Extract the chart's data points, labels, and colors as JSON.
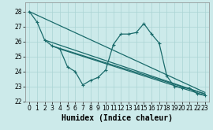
{
  "xlabel": "Humidex (Indice chaleur)",
  "background_color": "#cceaea",
  "grid_color": "#aad4d4",
  "line_color": "#1a6b6b",
  "xlim": [
    -0.5,
    23.5
  ],
  "ylim": [
    22.0,
    28.6
  ],
  "yticks": [
    22,
    23,
    24,
    25,
    26,
    27,
    28
  ],
  "xticks": [
    0,
    1,
    2,
    3,
    4,
    5,
    6,
    7,
    8,
    9,
    10,
    11,
    12,
    13,
    14,
    15,
    16,
    17,
    18,
    19,
    20,
    21,
    22,
    23
  ],
  "wiggly_x": [
    0,
    1,
    2,
    3,
    4,
    5,
    6,
    7,
    8,
    9,
    10,
    11,
    12,
    13,
    14,
    15,
    16,
    17,
    18,
    19,
    20,
    21,
    22,
    23
  ],
  "wiggly_y": [
    28.0,
    27.3,
    26.1,
    25.7,
    25.5,
    24.3,
    24.0,
    23.1,
    23.4,
    23.6,
    24.1,
    25.8,
    26.5,
    26.5,
    26.6,
    27.2,
    26.5,
    25.9,
    23.7,
    23.0,
    22.9,
    22.9,
    22.5,
    22.4
  ],
  "trend1_x": [
    0,
    23
  ],
  "trend1_y": [
    28.0,
    22.6
  ],
  "trend2_x": [
    2,
    23
  ],
  "trend2_y": [
    26.1,
    22.5
  ],
  "trend3_x": [
    3,
    23
  ],
  "trend3_y": [
    25.7,
    22.5
  ],
  "trend4_x": [
    4,
    23
  ],
  "trend4_y": [
    25.5,
    22.4
  ],
  "marker_size": 3.0,
  "linewidth": 0.9,
  "tick_fontsize": 5.5,
  "xlabel_fontsize": 7
}
